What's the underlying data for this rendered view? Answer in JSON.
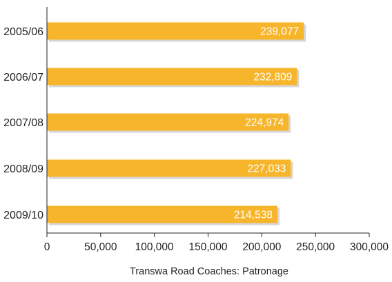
{
  "chart_data": {
    "type": "bar",
    "orientation": "horizontal",
    "categories": [
      "2005/06",
      "2006/07",
      "2007/08",
      "2008/09",
      "2009/10"
    ],
    "values": [
      239077,
      232809,
      224974,
      227033,
      214538
    ],
    "value_labels": [
      "239,077",
      "232,809",
      "224,974",
      "227,033",
      "214,538"
    ],
    "xticks": [
      0,
      50000,
      100000,
      150000,
      200000,
      250000,
      300000
    ],
    "xtick_labels": [
      "0",
      "50,000",
      "100,000",
      "150,000",
      "200,000",
      "250,000",
      "300,000"
    ],
    "xlim": [
      0,
      300000
    ],
    "xlabel": "Transwa Road Coaches: Patronage",
    "ylabel": "",
    "title": "",
    "grid": false,
    "legend": "none",
    "colors": {
      "bar": "#f7b52c",
      "bar_shadow": "#d6d6d6",
      "axis": "#231f20",
      "bar_label": "#ffffff"
    }
  }
}
